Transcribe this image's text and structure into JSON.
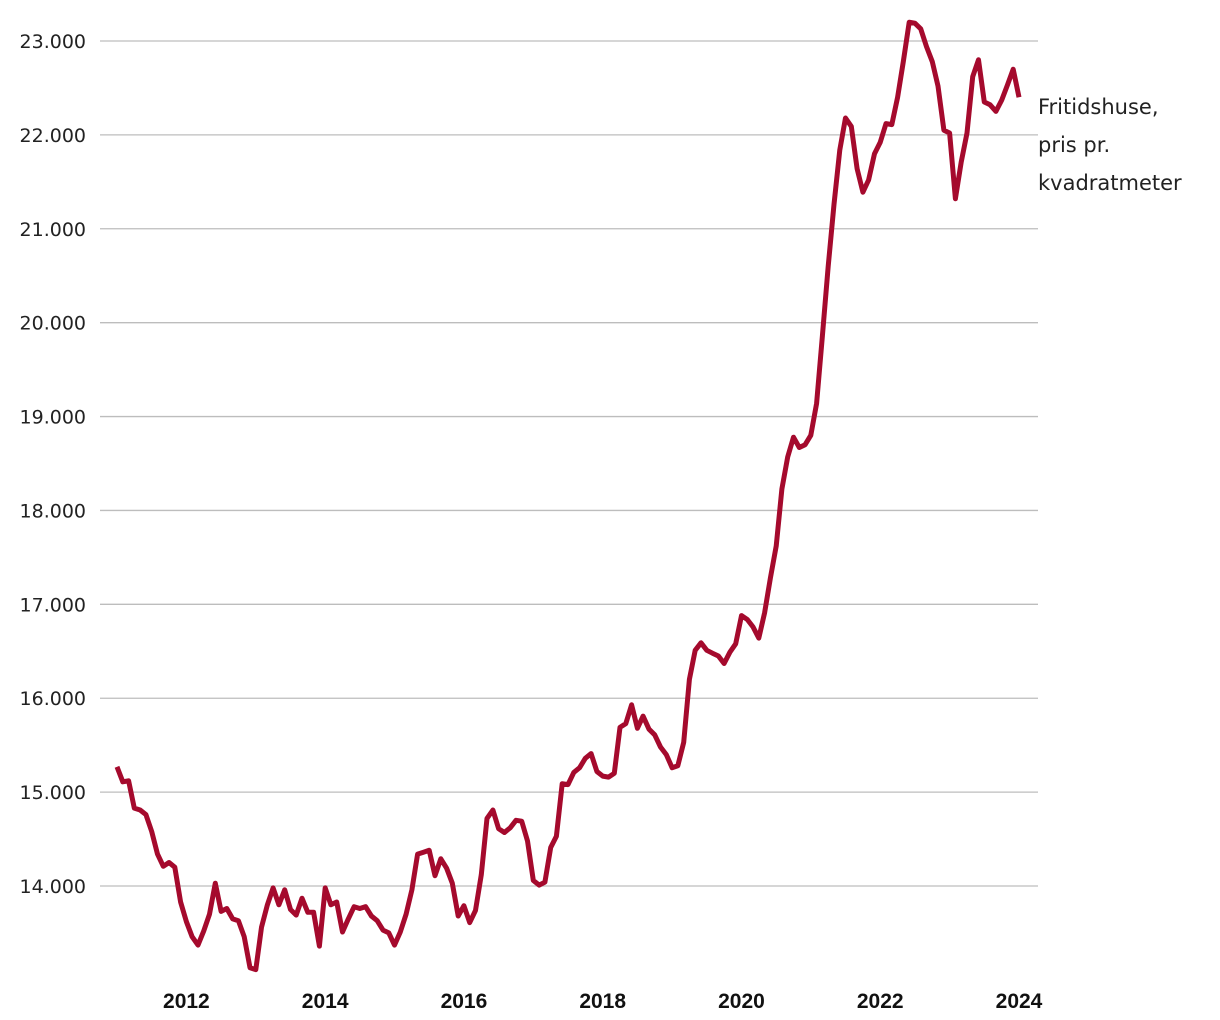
{
  "chart_data": {
    "type": "line",
    "title": "",
    "xlabel": "",
    "ylabel": "",
    "ylim": [
      13000,
      23000
    ],
    "xlim": [
      2011.0,
      2024.0
    ],
    "grid": true,
    "y_ticks": [
      14000,
      15000,
      16000,
      17000,
      18000,
      19000,
      20000,
      21000,
      22000,
      23000
    ],
    "y_tick_labels": [
      "14.000",
      "15.000",
      "16.000",
      "17.000",
      "18.000",
      "19.000",
      "20.000",
      "21.000",
      "22.000",
      "23.000"
    ],
    "x_ticks": [
      2012,
      2014,
      2016,
      2018,
      2020,
      2022,
      2024
    ],
    "x_tick_labels": [
      "2012",
      "2014",
      "2016",
      "2018",
      "2020",
      "2022",
      "2024"
    ],
    "line_color": "#a50a2d",
    "series": [
      {
        "name": "Fritidshuse, pris pr. kvadratmeter",
        "label_lines": [
          "Fritidshuse,",
          "pris pr.",
          "kvadratmeter"
        ],
        "x": [
          2011.0,
          2011.083,
          2011.167,
          2011.25,
          2011.333,
          2011.417,
          2011.5,
          2011.583,
          2011.667,
          2011.75,
          2011.833,
          2011.917,
          2012.0,
          2012.083,
          2012.167,
          2012.25,
          2012.333,
          2012.417,
          2012.5,
          2012.583,
          2012.667,
          2012.75,
          2012.833,
          2012.917,
          2013.0,
          2013.083,
          2013.167,
          2013.25,
          2013.333,
          2013.417,
          2013.5,
          2013.583,
          2013.667,
          2013.75,
          2013.833,
          2013.917,
          2014.0,
          2014.083,
          2014.167,
          2014.25,
          2014.333,
          2014.417,
          2014.5,
          2014.583,
          2014.667,
          2014.75,
          2014.833,
          2014.917,
          2015.0,
          2015.083,
          2015.167,
          2015.25,
          2015.333,
          2015.417,
          2015.5,
          2015.583,
          2015.667,
          2015.75,
          2015.833,
          2015.917,
          2016.0,
          2016.083,
          2016.167,
          2016.25,
          2016.333,
          2016.417,
          2016.5,
          2016.583,
          2016.667,
          2016.75,
          2016.833,
          2016.917,
          2017.0,
          2017.083,
          2017.167,
          2017.25,
          2017.333,
          2017.417,
          2017.5,
          2017.583,
          2017.667,
          2017.75,
          2017.833,
          2017.917,
          2018.0,
          2018.083,
          2018.167,
          2018.25,
          2018.333,
          2018.417,
          2018.5,
          2018.583,
          2018.667,
          2018.75,
          2018.833,
          2018.917,
          2019.0,
          2019.083,
          2019.167,
          2019.25,
          2019.333,
          2019.417,
          2019.5,
          2019.583,
          2019.667,
          2019.75,
          2019.833,
          2019.917,
          2020.0,
          2020.083,
          2020.167,
          2020.25,
          2020.333,
          2020.417,
          2020.5,
          2020.583,
          2020.667,
          2020.75,
          2020.833,
          2020.917,
          2021.0,
          2021.083,
          2021.167,
          2021.25,
          2021.333,
          2021.417,
          2021.5,
          2021.583,
          2021.667,
          2021.75,
          2021.833,
          2021.917,
          2022.0,
          2022.083,
          2022.167,
          2022.25,
          2022.333,
          2022.417,
          2022.5,
          2022.583,
          2022.667,
          2022.75,
          2022.833,
          2022.917,
          2023.0,
          2023.083,
          2023.167,
          2023.25,
          2023.333,
          2023.417,
          2023.5,
          2023.583,
          2023.667,
          2023.75,
          2023.833,
          2023.917,
          2024.0
        ],
        "values": [
          15270,
          15110,
          15120,
          14830,
          14810,
          14760,
          14580,
          14340,
          14210,
          14250,
          14200,
          13830,
          13620,
          13460,
          13370,
          13520,
          13700,
          14030,
          13730,
          13760,
          13650,
          13630,
          13460,
          13130,
          13110,
          13560,
          13800,
          13980,
          13800,
          13960,
          13750,
          13690,
          13870,
          13720,
          13720,
          13360,
          13980,
          13800,
          13830,
          13510,
          13650,
          13780,
          13760,
          13780,
          13680,
          13630,
          13530,
          13500,
          13370,
          13510,
          13700,
          13960,
          14340,
          14360,
          14380,
          14110,
          14290,
          14190,
          14030,
          13680,
          13790,
          13610,
          13740,
          14120,
          14720,
          14810,
          14610,
          14570,
          14620,
          14700,
          14690,
          14480,
          14060,
          14010,
          14040,
          14410,
          14530,
          15090,
          15080,
          15210,
          15260,
          15360,
          15410,
          15220,
          15170,
          15160,
          15200,
          15690,
          15730,
          15930,
          15680,
          15810,
          15670,
          15610,
          15480,
          15400,
          15260,
          15280,
          15530,
          16200,
          16510,
          16590,
          16510,
          16480,
          16450,
          16370,
          16490,
          16580,
          16880,
          16840,
          16760,
          16640,
          16910,
          17280,
          17620,
          18230,
          18570,
          18780,
          18670,
          18700,
          18800,
          19140,
          19860,
          20600,
          21260,
          21840,
          22180,
          22090,
          21640,
          21390,
          21520,
          21800,
          21920,
          22120,
          22110,
          22400,
          22780,
          23200,
          23190,
          23130,
          22940,
          22780,
          22520,
          22050,
          22020,
          21320,
          21710,
          22020,
          22620,
          22800,
          22350,
          22320,
          22250,
          22370,
          22530,
          22700,
          22400
        ]
      }
    ]
  }
}
